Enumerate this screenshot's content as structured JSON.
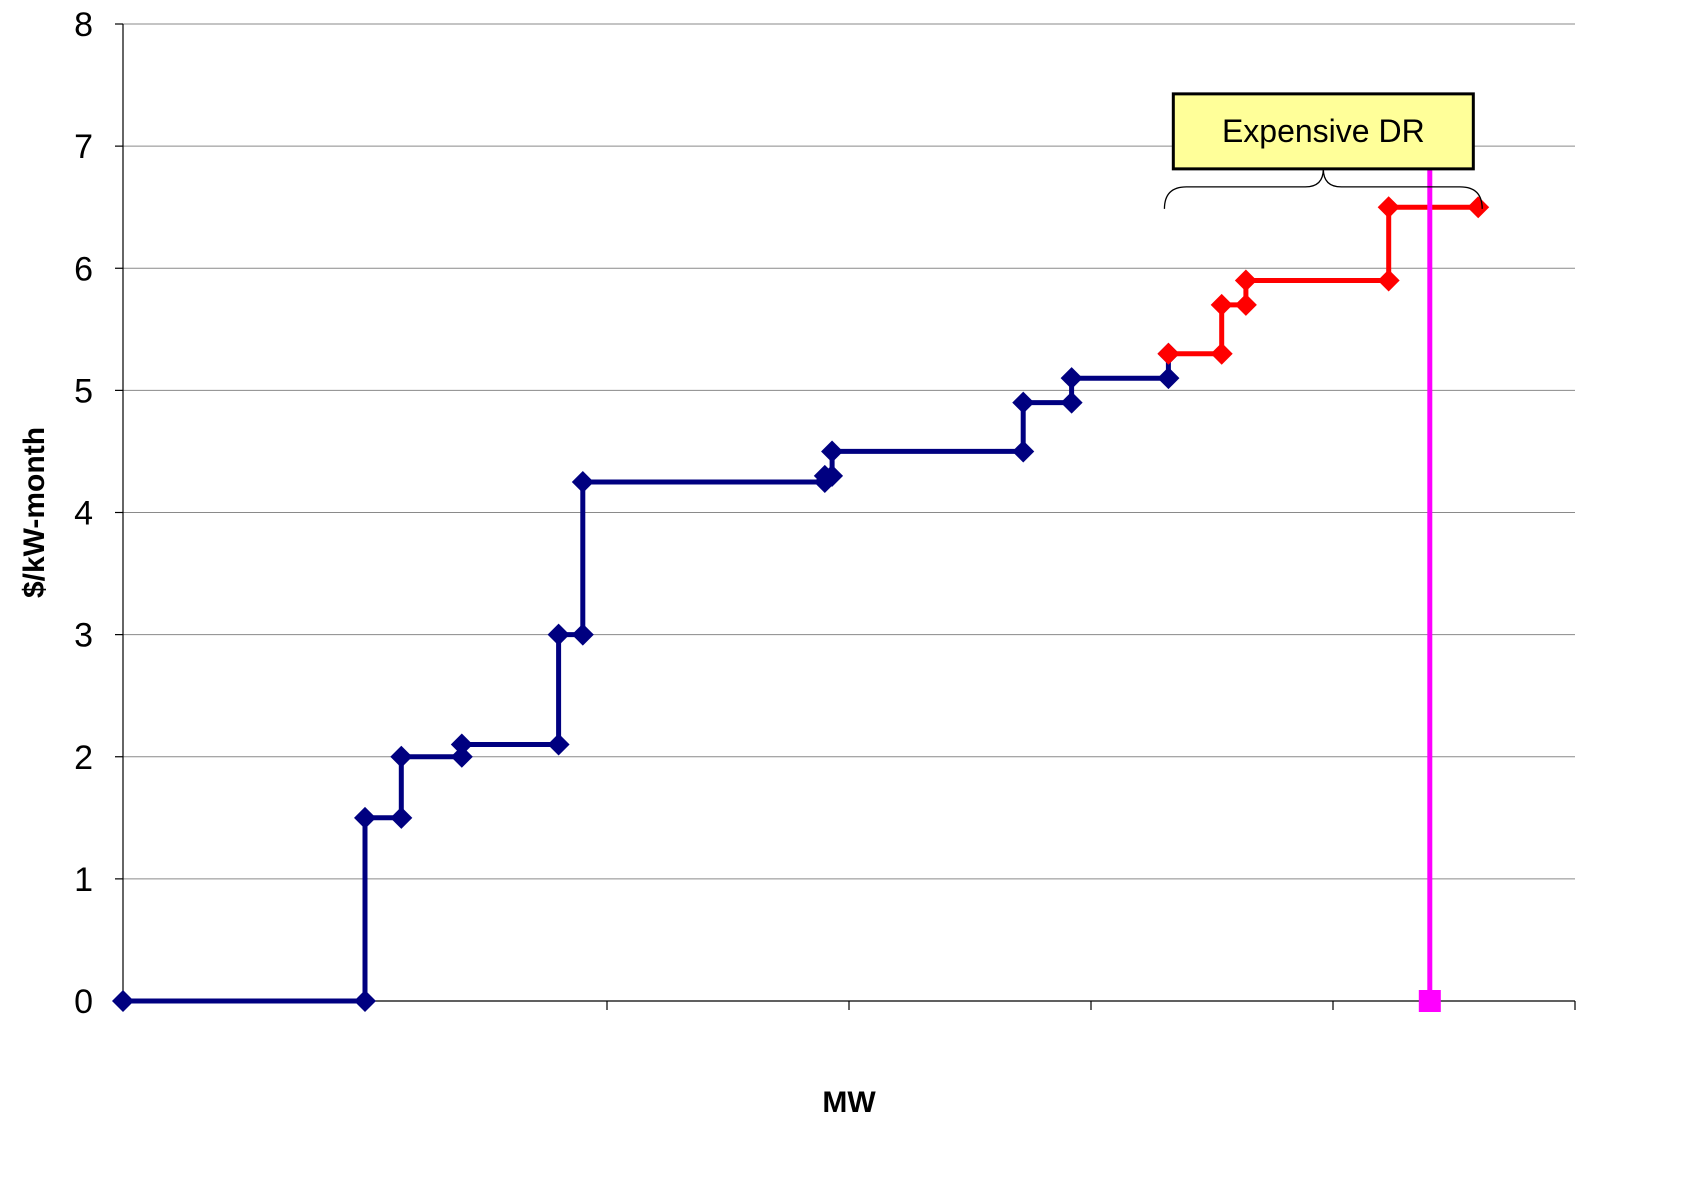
{
  "chart_data": {
    "type": "line",
    "title": "",
    "xlabel": "MW",
    "ylabel": "$/kW-month",
    "xlim": [
      0,
      6
    ],
    "ylim": [
      0,
      8
    ],
    "x_tick_values": [
      0,
      1,
      2,
      3,
      4,
      5,
      6
    ],
    "y_ticks": [
      0,
      1,
      2,
      3,
      4,
      5,
      6,
      7,
      8
    ],
    "grid": {
      "horizontal": true,
      "vertical": false
    },
    "legend": "none",
    "series": [
      {
        "color": "#000080",
        "points": [
          [
            0.0,
            0.0
          ],
          [
            1.0,
            0.0
          ],
          [
            1.0,
            1.5
          ],
          [
            1.15,
            1.5
          ],
          [
            1.15,
            2.0
          ],
          [
            1.4,
            2.0
          ],
          [
            1.4,
            2.1
          ],
          [
            1.8,
            2.1
          ],
          [
            1.8,
            3.0
          ],
          [
            1.9,
            3.0
          ],
          [
            1.9,
            4.25
          ],
          [
            2.9,
            4.25
          ],
          [
            2.9,
            4.3
          ],
          [
            2.93,
            4.3
          ],
          [
            2.93,
            4.5
          ],
          [
            3.72,
            4.5
          ],
          [
            3.72,
            4.9
          ],
          [
            3.92,
            4.9
          ],
          [
            3.92,
            5.1
          ],
          [
            4.32,
            5.1
          ],
          [
            4.32,
            5.3
          ]
        ]
      },
      {
        "color": "#ff0000",
        "points": [
          [
            4.32,
            5.3
          ],
          [
            4.54,
            5.3
          ],
          [
            4.54,
            5.7
          ],
          [
            4.64,
            5.7
          ],
          [
            4.64,
            5.9
          ],
          [
            5.23,
            5.9
          ],
          [
            5.23,
            6.5
          ],
          [
            5.6,
            6.5
          ]
        ]
      },
      {
        "color": "#ff00ff",
        "marker": "square",
        "points": [
          [
            5.4,
            0.0
          ],
          [
            5.4,
            7.0
          ]
        ]
      }
    ],
    "annotation": {
      "text": "Expensive DR",
      "box_fill": "#ffff99",
      "brace_range": [
        4.32,
        5.6
      ],
      "brace_y": 6.65
    }
  }
}
